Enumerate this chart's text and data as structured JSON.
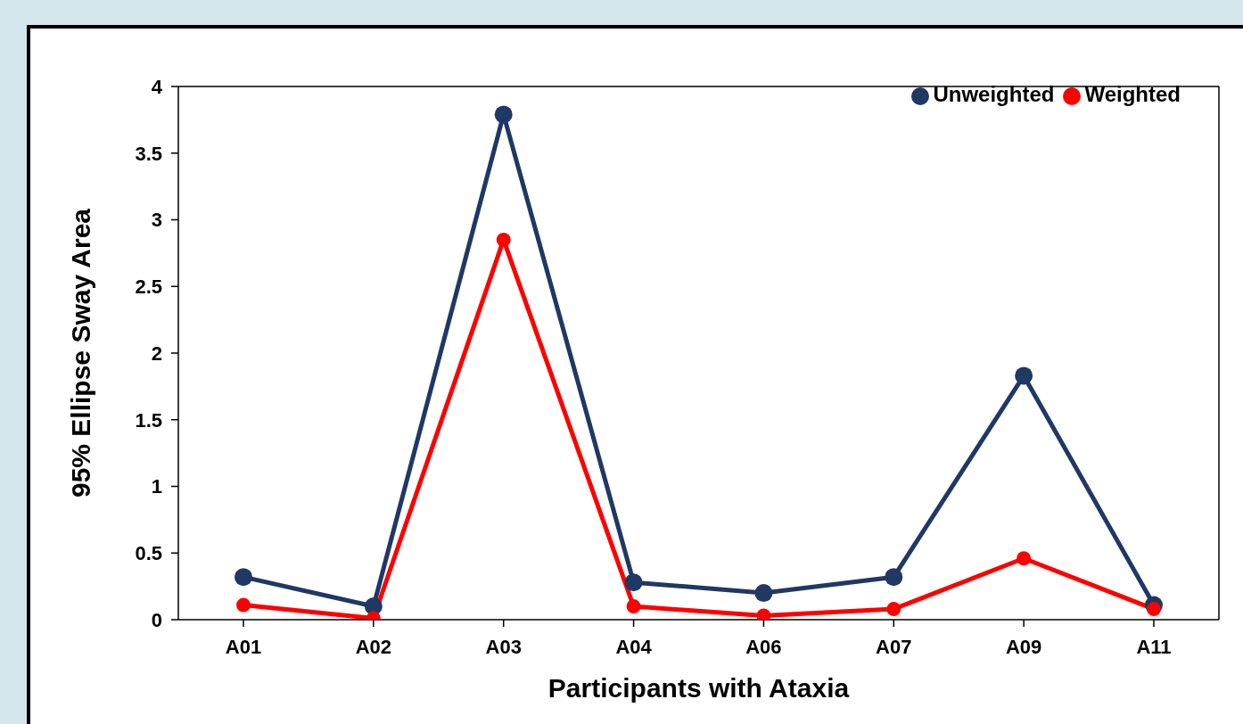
{
  "chart_data": {
    "type": "line",
    "xlabel": "Participants with Ataxia",
    "ylabel": "95% Ellipse Sway Area",
    "categories": [
      "A01",
      "A02",
      "A03",
      "A04",
      "A06",
      "A07",
      "A09",
      "A11"
    ],
    "series": [
      {
        "name": "Unweighted",
        "color": "#1f3864",
        "values": [
          0.32,
          0.1,
          3.79,
          0.28,
          0.2,
          0.32,
          1.83,
          0.11
        ]
      },
      {
        "name": "Weighted",
        "color": "#ff0000",
        "values": [
          0.11,
          0.01,
          2.85,
          0.1,
          0.03,
          0.08,
          0.46,
          0.08
        ]
      }
    ],
    "ylim": [
      0,
      4
    ],
    "yticks": [
      0,
      0.5,
      1,
      1.5,
      2,
      2.5,
      3,
      3.5,
      4
    ],
    "grid": false,
    "legend": "top right",
    "marker": "circle",
    "line_style": "solid"
  }
}
